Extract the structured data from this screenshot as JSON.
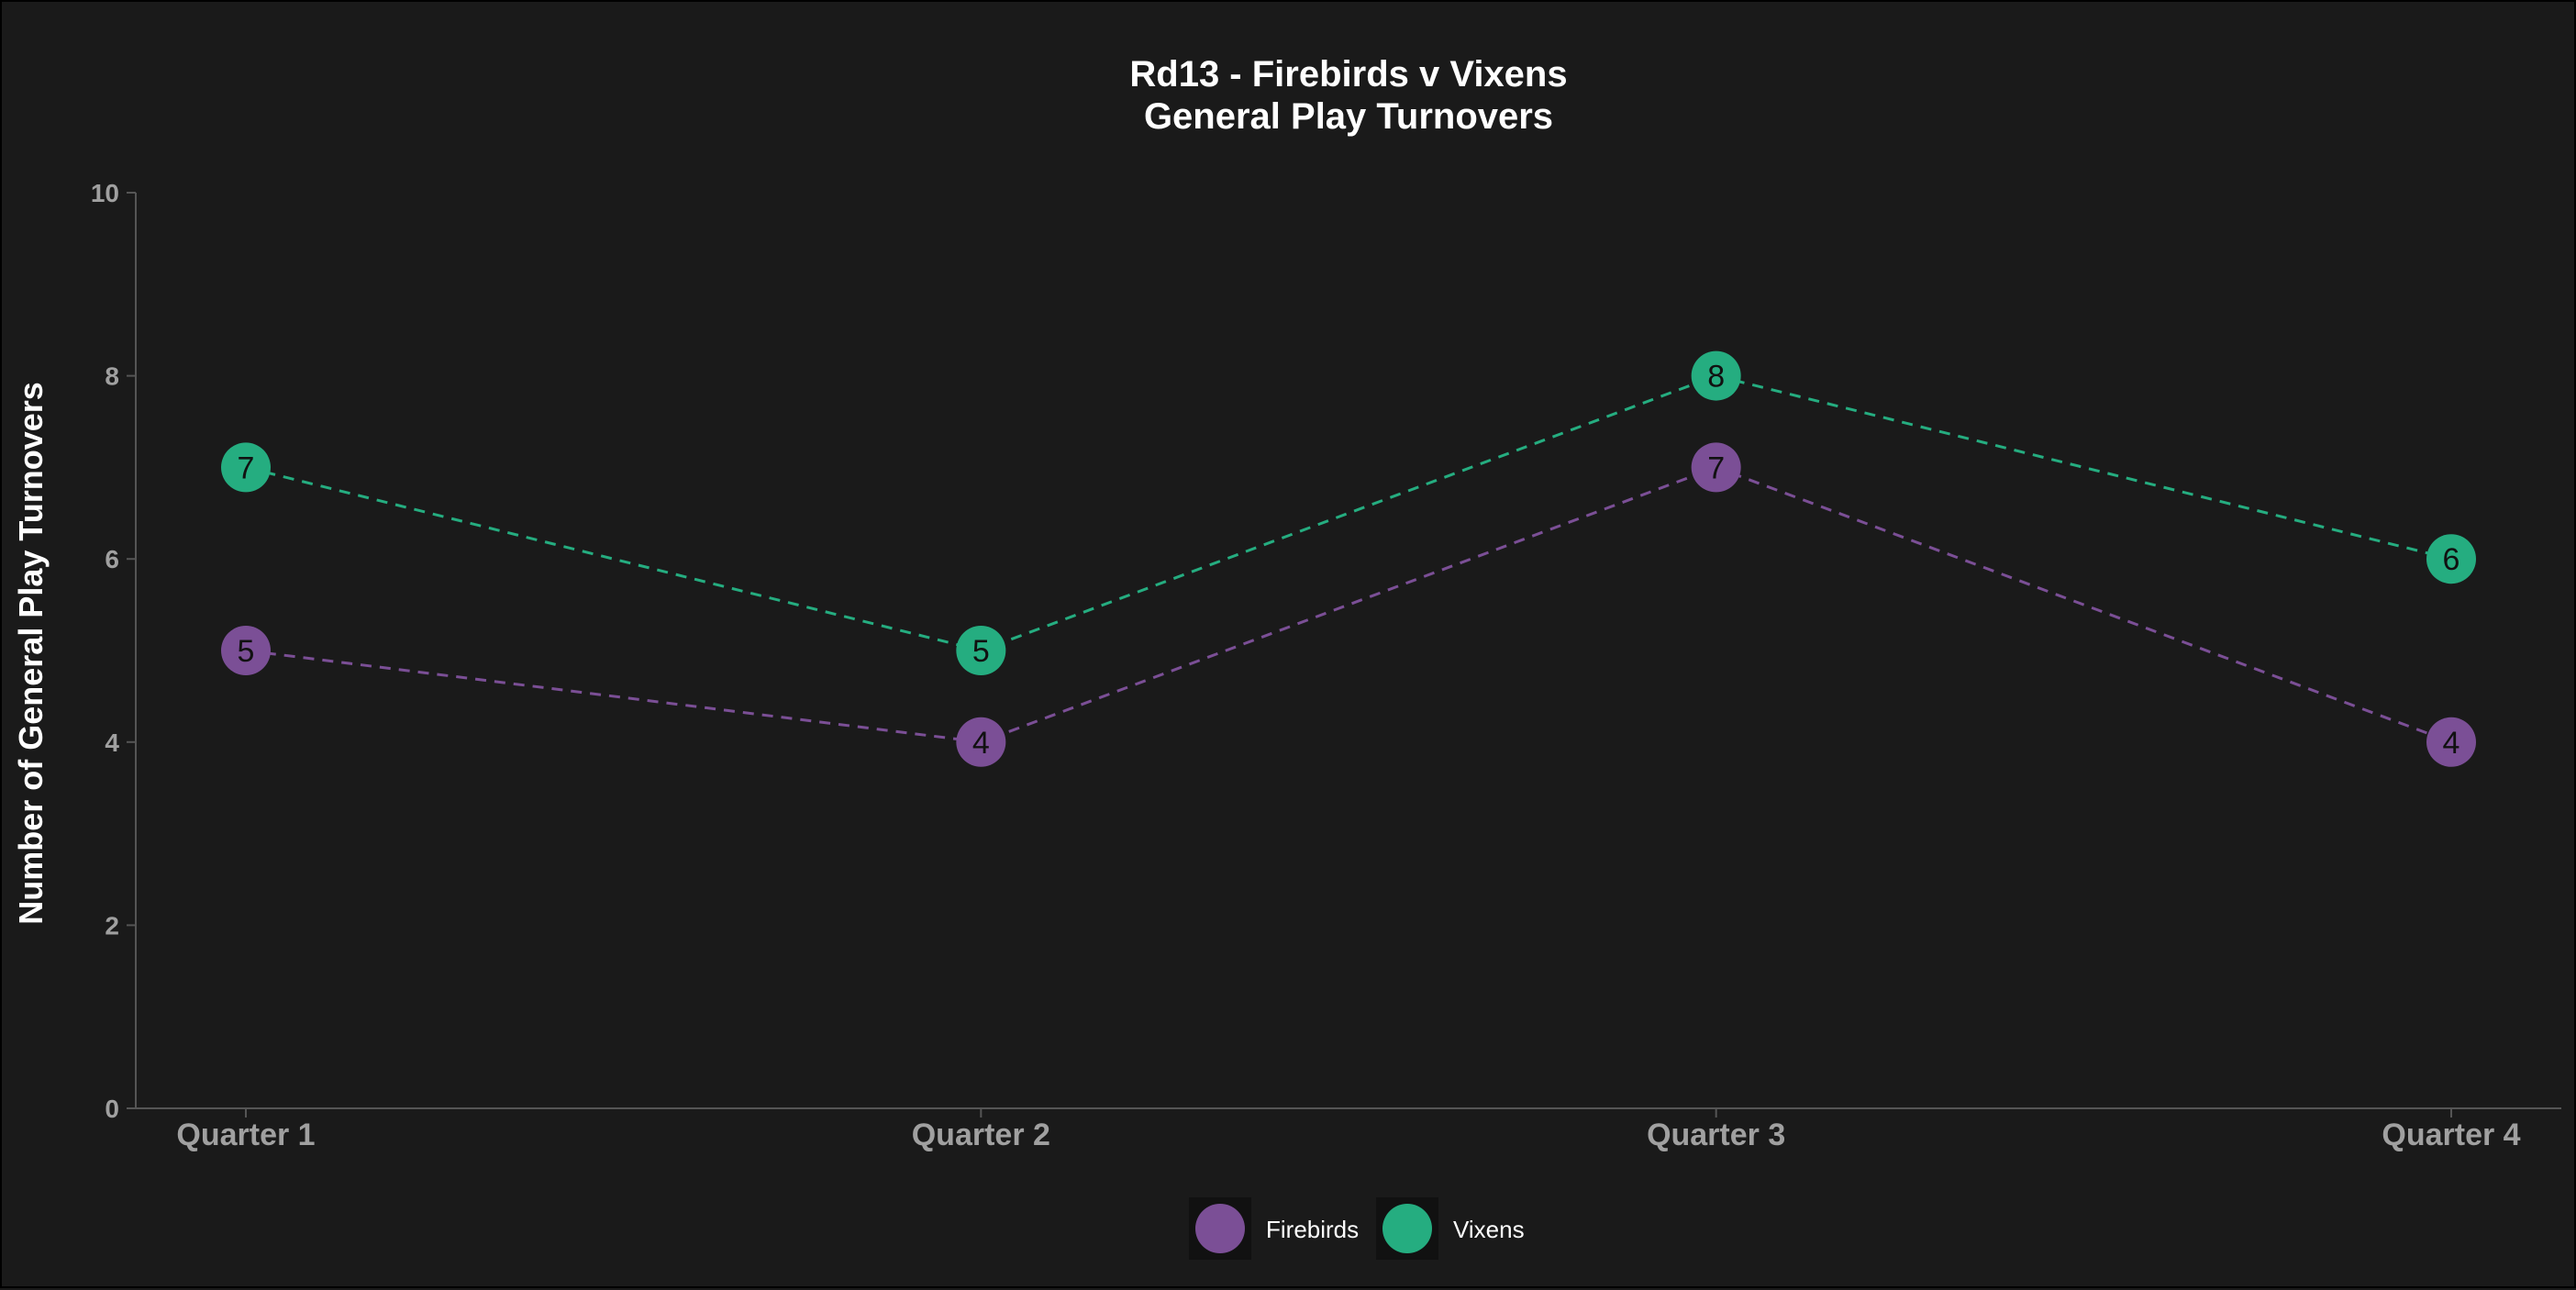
{
  "chart_data": {
    "type": "line",
    "title_line1": "Rd13 - Firebirds v Vixens",
    "title_line2": "General Play Turnovers",
    "xlabel": "",
    "ylabel": "Number of General Play Turnovers",
    "categories": [
      "Quarter 1",
      "Quarter 2",
      "Quarter 3",
      "Quarter 4"
    ],
    "ylim": [
      0,
      10
    ],
    "yticks": [
      "0",
      "2",
      "4",
      "6",
      "8",
      "10"
    ],
    "grid": false,
    "legend_position": "bottom",
    "series": [
      {
        "name": "Firebirds",
        "color": "#7b4f96",
        "values": [
          5,
          4,
          7,
          4
        ]
      },
      {
        "name": "Vixens",
        "color": "#25ad80",
        "values": [
          7,
          5,
          8,
          6
        ]
      }
    ]
  }
}
